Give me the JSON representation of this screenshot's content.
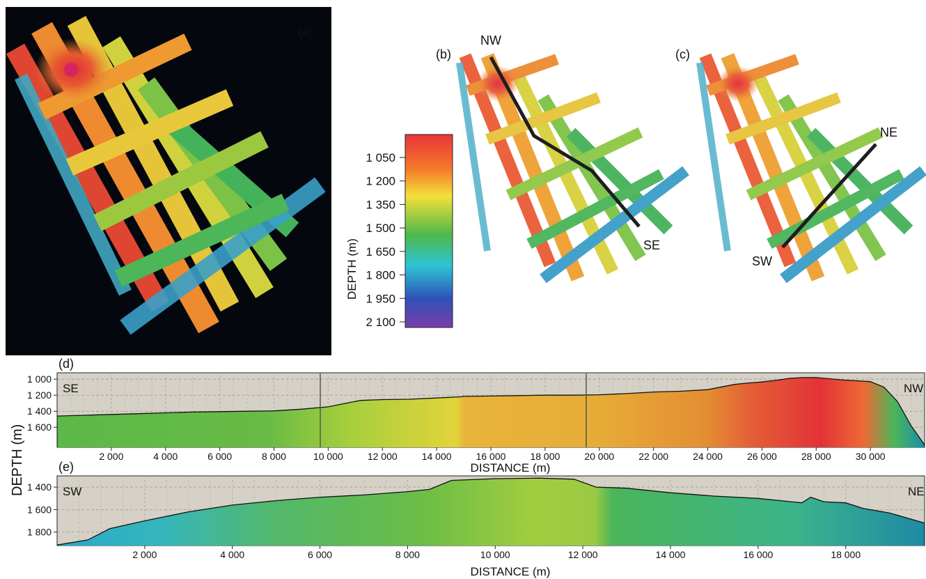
{
  "panels": {
    "a": "(a)",
    "b": "(b)",
    "c": "(c)",
    "d": "(d)",
    "e": "(e)"
  },
  "map_labels": {
    "b_start": "NW",
    "b_end": "SE",
    "c_start": "NE",
    "c_end": "SW"
  },
  "colorbar": {
    "title": "DEPTH (m)",
    "ticks": [
      "1 050",
      "1 200",
      "1 350",
      "1 500",
      "1 650",
      "1 800",
      "1 950",
      "2 100"
    ],
    "colors": [
      "#e8343a",
      "#f47a2a",
      "#f4e03a",
      "#4db84a",
      "#2ec4d4",
      "#2e52b8",
      "#7a3ea8"
    ]
  },
  "shared_ylabel": "DEPTH (m)",
  "chart_data": [
    {
      "type": "area",
      "panel": "(d)",
      "xlabel": "DISTANCE (m)",
      "ylabel": "DEPTH (m)",
      "left_end_label": "SE",
      "right_end_label": "NW",
      "x_ticks": [
        "2 000",
        "4 000",
        "6 000",
        "8 000",
        "10 000",
        "12 000",
        "14 000",
        "16 000",
        "18 000",
        "20 000",
        "22 000",
        "24 000",
        "26 000",
        "28 000",
        "30 000"
      ],
      "x_tick_values": [
        2000,
        4000,
        6000,
        8000,
        10000,
        12000,
        14000,
        16000,
        18000,
        20000,
        22000,
        24000,
        26000,
        28000,
        30000
      ],
      "y_ticks": [
        "1 000",
        "1 200",
        "1 400",
        "1 600"
      ],
      "y_tick_values": [
        1000,
        1200,
        1400,
        1600
      ],
      "xlim": [
        0,
        32000
      ],
      "ylim": [
        920,
        1850
      ],
      "grid": true,
      "x": [
        0,
        1000,
        2000,
        3000,
        4000,
        5000,
        6000,
        7000,
        8000,
        9000,
        10000,
        10800,
        11200,
        12000,
        13000,
        14000,
        14900,
        15000,
        16000,
        17000,
        18000,
        19000,
        20000,
        21000,
        22000,
        23000,
        24000,
        25000,
        25400,
        26000,
        26600,
        27000,
        27500,
        28000,
        29000,
        30000,
        30500,
        31000,
        31500,
        32000
      ],
      "values": [
        1460,
        1450,
        1440,
        1430,
        1420,
        1410,
        1405,
        1400,
        1395,
        1375,
        1345,
        1290,
        1265,
        1255,
        1250,
        1235,
        1220,
        1215,
        1210,
        1205,
        1200,
        1200,
        1195,
        1180,
        1160,
        1150,
        1130,
        1065,
        1050,
        1035,
        1010,
        990,
        980,
        980,
        1010,
        1030,
        1100,
        1280,
        1580,
        1820
      ]
    },
    {
      "type": "area",
      "panel": "(e)",
      "xlabel": "DISTANCE (m)",
      "ylabel": "DEPTH (m)",
      "left_end_label": "SW",
      "right_end_label": "NE",
      "x_ticks": [
        "2 000",
        "4 000",
        "6 000",
        "8 000",
        "10 000",
        "12 000",
        "14 000",
        "16 000",
        "18 000"
      ],
      "x_tick_values": [
        2000,
        4000,
        6000,
        8000,
        10000,
        12000,
        14000,
        16000,
        18000
      ],
      "y_ticks": [
        "1 400",
        "1 600",
        "1 800"
      ],
      "y_tick_values": [
        1400,
        1600,
        1800
      ],
      "xlim": [
        0,
        19800
      ],
      "ylim": [
        1300,
        1920
      ],
      "grid": true,
      "x": [
        0,
        700,
        1200,
        2000,
        3000,
        4000,
        5000,
        6000,
        7000,
        8000,
        8500,
        9000,
        10000,
        11000,
        11800,
        12300,
        13000,
        14000,
        15000,
        16000,
        17000,
        17200,
        17500,
        18000,
        18400,
        19000,
        19800
      ],
      "values": [
        1915,
        1870,
        1770,
        1700,
        1620,
        1560,
        1520,
        1490,
        1470,
        1440,
        1420,
        1340,
        1325,
        1320,
        1330,
        1400,
        1410,
        1450,
        1480,
        1500,
        1540,
        1490,
        1530,
        1540,
        1590,
        1630,
        1720
      ]
    }
  ]
}
